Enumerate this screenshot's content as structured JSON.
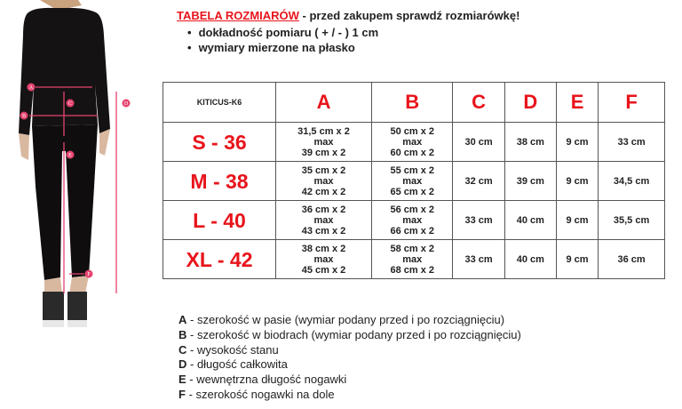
{
  "header": {
    "title": "TABELA ROZMIARÓW",
    "subtitle": " - przed zakupem sprawdź rozmiarówkę!",
    "bullets": [
      "dokładność pomiaru ( + / - ) 1 cm",
      "wymiary mierzone na płasko"
    ]
  },
  "figure": {
    "markers": [
      "A",
      "B",
      "C",
      "D",
      "E",
      "F"
    ],
    "arrow_color": "#e5436f"
  },
  "table": {
    "model": "KITICUS-K6",
    "columns": [
      "A",
      "B",
      "C",
      "D",
      "E",
      "F"
    ],
    "rows": [
      {
        "size": "S - 36",
        "a": [
          "31,5 cm x 2",
          "max",
          "39 cm x 2"
        ],
        "b": [
          "50 cm x 2",
          "max",
          "60 cm x 2"
        ],
        "c": "30 cm",
        "d": "38 cm",
        "e": "9 cm",
        "f": "33 cm"
      },
      {
        "size": "M - 38",
        "a": [
          "35 cm x 2",
          "max",
          "42 cm x 2"
        ],
        "b": [
          "55 cm x 2",
          "max",
          "65 cm x 2"
        ],
        "c": "32 cm",
        "d": "39 cm",
        "e": "9 cm",
        "f": "34,5 cm"
      },
      {
        "size": "L - 40",
        "a": [
          "36 cm x 2",
          "max",
          "43 cm x 2"
        ],
        "b": [
          "56 cm x 2",
          "max",
          "66 cm x 2"
        ],
        "c": "33 cm",
        "d": "40 cm",
        "e": "9 cm",
        "f": "35,5 cm"
      },
      {
        "size": "XL - 42",
        "a": [
          "38 cm x 2",
          "max",
          "45 cm x 2"
        ],
        "b": [
          "58 cm x 2",
          "max",
          "68 cm x 2"
        ],
        "c": "33 cm",
        "d": "40 cm",
        "e": "9 cm",
        "f": "36 cm"
      }
    ]
  },
  "legend": [
    {
      "key": "A",
      "text": " - szerokość w pasie (wymiar podany przed i po rozciągnięciu)"
    },
    {
      "key": "B",
      "text": " - szerokość w biodrach (wymiar podany przed i po rozciągnięciu)"
    },
    {
      "key": "C",
      "text": " - wysokość stanu"
    },
    {
      "key": "D",
      "text": " - długość całkowita"
    },
    {
      "key": "E",
      "text": " - wewnętrzna długość nogawki"
    },
    {
      "key": "F",
      "text": " - szerokość nogawki na dole"
    }
  ],
  "colors": {
    "accent": "#e8141b",
    "text": "#222222"
  }
}
